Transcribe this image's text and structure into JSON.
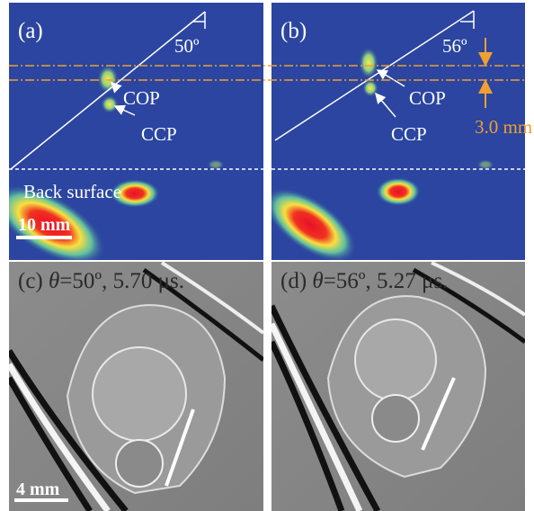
{
  "panels": [
    {
      "label": "(a)",
      "angle": "50º",
      "annotations": [
        "COP",
        "CCP"
      ],
      "surface_label": "Back surface",
      "scale_bar": "10 mm"
    },
    {
      "label": "(b)",
      "angle": "56º",
      "annotations": [
        "COP",
        "CCP"
      ],
      "measurement": "3.0 mm"
    },
    {
      "label": "(c)",
      "symbol": "θ",
      "caption": "=50º, 5.70 μs.",
      "scale_bar": "4 mm"
    },
    {
      "label": "(d)",
      "symbol": "θ",
      "caption": "=56º, 5.27 μs."
    }
  ]
}
